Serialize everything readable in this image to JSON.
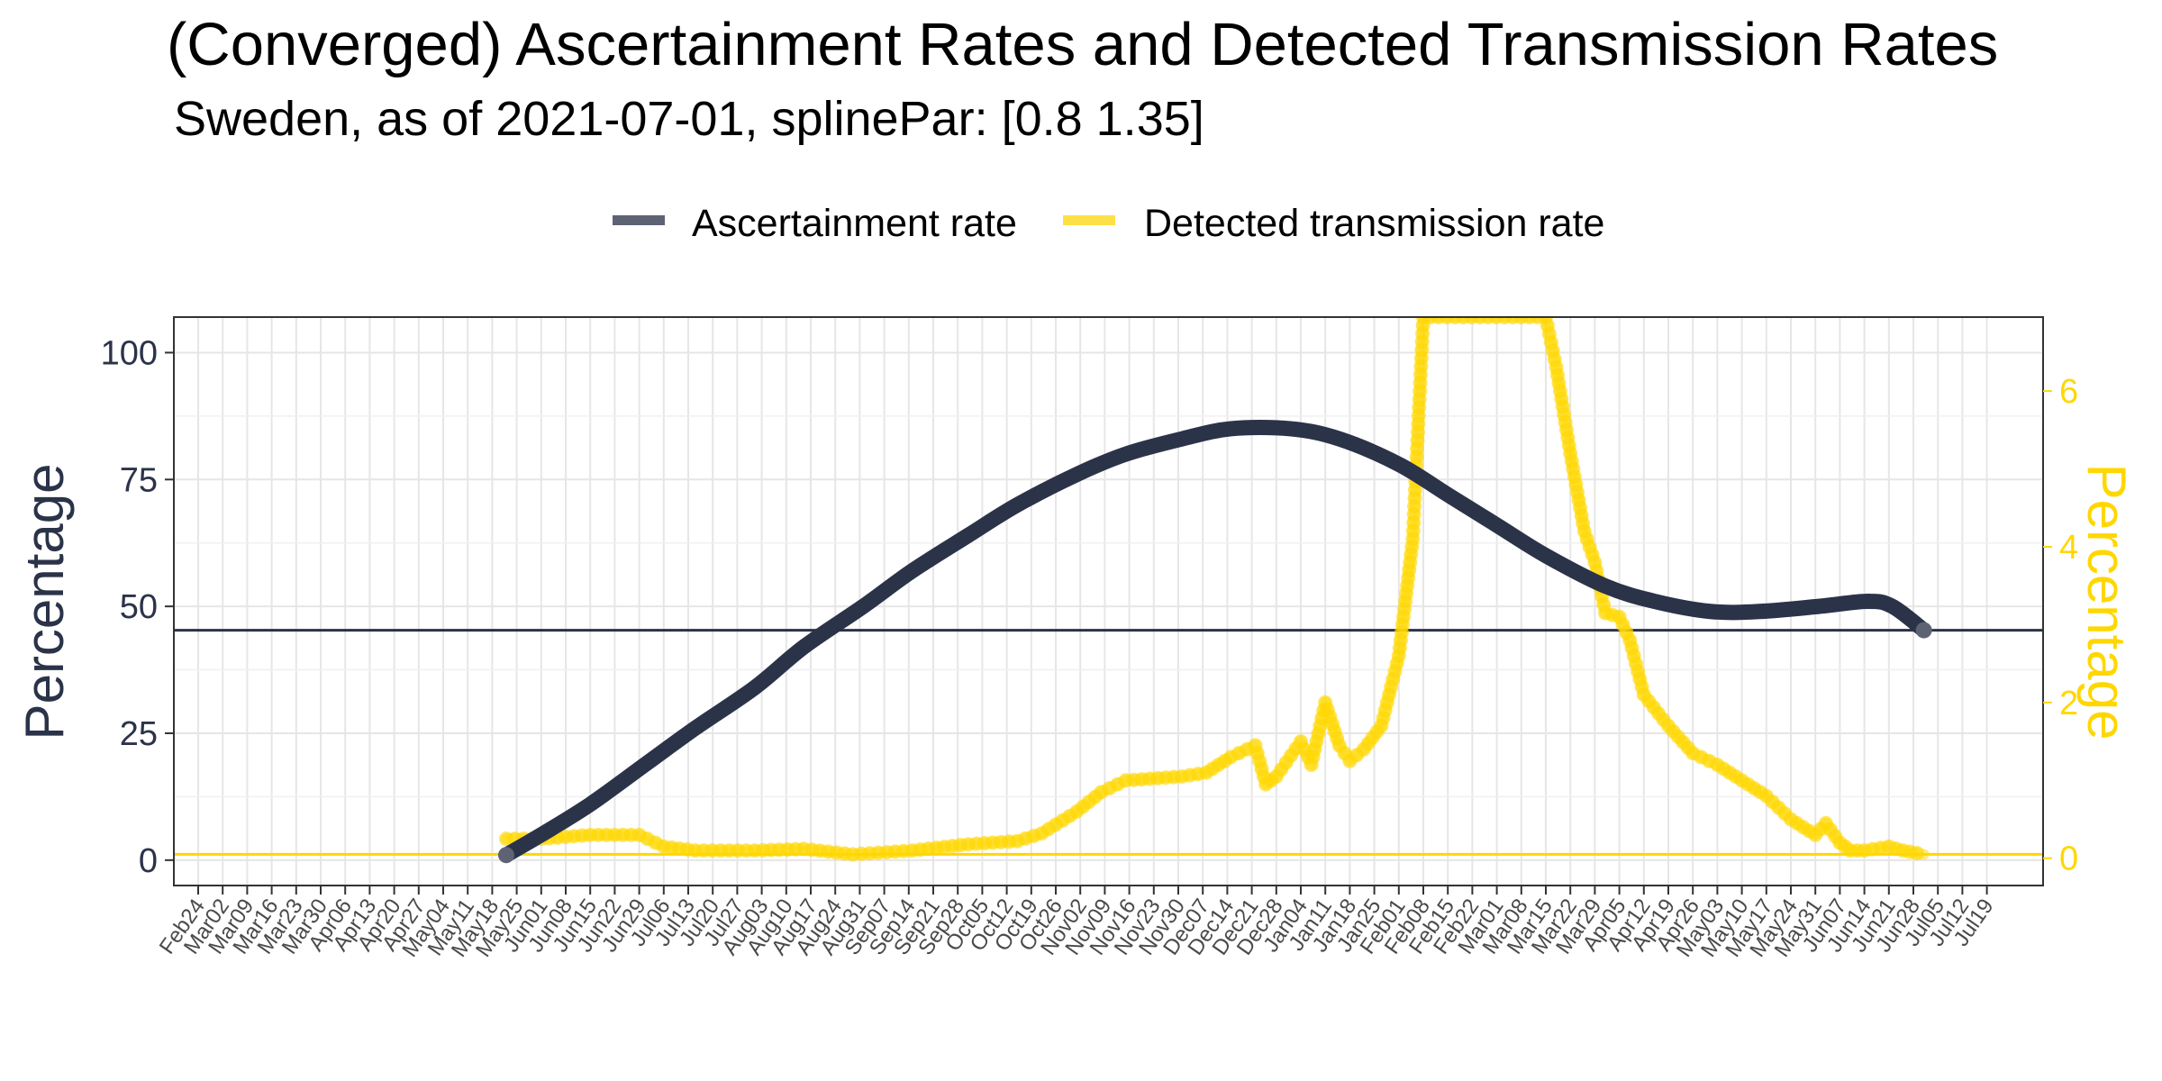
{
  "chart_data": {
    "type": "line",
    "title": "(Converged) Ascertainment Rates and Detected Transmission Rates",
    "subtitle": "Sweden, as of 2021-07-01, splinePar: [0.8 1.35]",
    "ylabel": "Percentage",
    "ylabel_right": "Percentage",
    "ylim": [
      -5,
      107
    ],
    "ylim_right": [
      -0.35,
      6.95
    ],
    "yticks": [
      0,
      25,
      50,
      75,
      100
    ],
    "yticks_right": [
      0,
      2,
      4,
      6
    ],
    "grid": true,
    "legend_position": "top",
    "x_tick_labels": [
      "Feb24",
      "Mar02",
      "Mar09",
      "Mar16",
      "Mar23",
      "Mar30",
      "Apr06",
      "Apr13",
      "Apr20",
      "Apr27",
      "May04",
      "May11",
      "May18",
      "May25",
      "Jun01",
      "Jun08",
      "Jun15",
      "Jun22",
      "Jun29",
      "Jul06",
      "Jul13",
      "Jul20",
      "Jul27",
      "Aug03",
      "Aug10",
      "Aug17",
      "Aug24",
      "Aug31",
      "Sep07",
      "Sep14",
      "Sep21",
      "Sep28",
      "Oct05",
      "Oct12",
      "Oct19",
      "Oct26",
      "Nov02",
      "Nov09",
      "Nov16",
      "Nov23",
      "Nov30",
      "Dec07",
      "Dec14",
      "Dec21",
      "Dec28",
      "Jan04",
      "Jan11",
      "Jan18",
      "Jan25",
      "Feb01",
      "Feb08",
      "Feb15",
      "Feb22",
      "Mar01",
      "Mar08",
      "Mar15",
      "Mar22",
      "Mar29",
      "Apr05",
      "Apr12",
      "Apr19",
      "Apr26",
      "May03",
      "May10",
      "May17",
      "May24",
      "May31",
      "Jun07",
      "Jun14",
      "Jun21",
      "Jun28",
      "Jul05",
      "Jul12",
      "Jul19"
    ],
    "reference_lines": [
      {
        "axis": "left",
        "y": 45.3,
        "color": "#2b3349"
      },
      {
        "axis": "right",
        "y": 0.05,
        "color": "#ffd700"
      }
    ],
    "series": [
      {
        "name": "Ascertainment rate",
        "axis": "left",
        "color": "#2b3349",
        "x": [
          "2020-05-22",
          "2020-06-01",
          "2020-06-15",
          "2020-07-01",
          "2020-07-15",
          "2020-08-01",
          "2020-08-15",
          "2020-09-01",
          "2020-09-15",
          "2020-10-01",
          "2020-10-15",
          "2020-11-01",
          "2020-11-15",
          "2020-12-01",
          "2020-12-15",
          "2021-01-01",
          "2021-01-15",
          "2021-02-01",
          "2021-02-15",
          "2021-03-01",
          "2021-03-15",
          "2021-04-01",
          "2021-04-15",
          "2021-05-01",
          "2021-05-15",
          "2021-06-01",
          "2021-06-15",
          "2021-06-22",
          "2021-07-01"
        ],
        "y": [
          1,
          5,
          11,
          19,
          26,
          34,
          42,
          50,
          57,
          64,
          70,
          76,
          80,
          83,
          85,
          85,
          83,
          78,
          72,
          66,
          60,
          54,
          51,
          49,
          49,
          50,
          51,
          50,
          45.3
        ]
      },
      {
        "name": "Detected transmission rate",
        "axis": "right",
        "color": "#ffd700",
        "x": [
          "2020-05-22",
          "2020-06-01",
          "2020-06-15",
          "2020-06-29",
          "2020-07-06",
          "2020-07-15",
          "2020-08-01",
          "2020-08-15",
          "2020-08-29",
          "2020-09-15",
          "2020-10-01",
          "2020-10-15",
          "2020-10-22",
          "2020-11-01",
          "2020-11-08",
          "2020-11-15",
          "2020-12-01",
          "2020-12-08",
          "2020-12-15",
          "2020-12-22",
          "2020-12-25",
          "2020-12-28",
          "2021-01-04",
          "2021-01-07",
          "2021-01-11",
          "2021-01-15",
          "2021-01-18",
          "2021-01-22",
          "2021-01-27",
          "2021-02-01",
          "2021-02-05",
          "2021-02-08",
          "2021-02-10",
          "2021-03-15",
          "2021-03-18",
          "2021-03-22",
          "2021-03-26",
          "2021-03-29",
          "2021-04-01",
          "2021-04-05",
          "2021-04-08",
          "2021-04-12",
          "2021-04-19",
          "2021-04-26",
          "2021-05-03",
          "2021-05-10",
          "2021-05-17",
          "2021-05-24",
          "2021-05-31",
          "2021-06-03",
          "2021-06-07",
          "2021-06-10",
          "2021-06-14",
          "2021-06-21",
          "2021-06-25",
          "2021-07-01"
        ],
        "y": [
          0.25,
          0.25,
          0.3,
          0.3,
          0.15,
          0.1,
          0.1,
          0.12,
          0.05,
          0.1,
          0.18,
          0.22,
          0.32,
          0.6,
          0.85,
          1.0,
          1.05,
          1.1,
          1.3,
          1.45,
          0.95,
          1.05,
          1.5,
          1.2,
          2.0,
          1.45,
          1.25,
          1.4,
          1.7,
          2.6,
          4.1,
          6.95,
          6.95,
          6.95,
          6.3,
          5.2,
          4.2,
          3.8,
          3.15,
          3.1,
          2.8,
          2.1,
          1.7,
          1.35,
          1.2,
          1.0,
          0.8,
          0.5,
          0.3,
          0.45,
          0.2,
          0.1,
          0.1,
          0.15,
          0.1,
          0.05
        ]
      }
    ]
  },
  "legend": {
    "items": [
      {
        "label": "Ascertainment rate",
        "color": "#5e6374"
      },
      {
        "label": "Detected transmission rate",
        "color": "#fde047"
      }
    ]
  }
}
